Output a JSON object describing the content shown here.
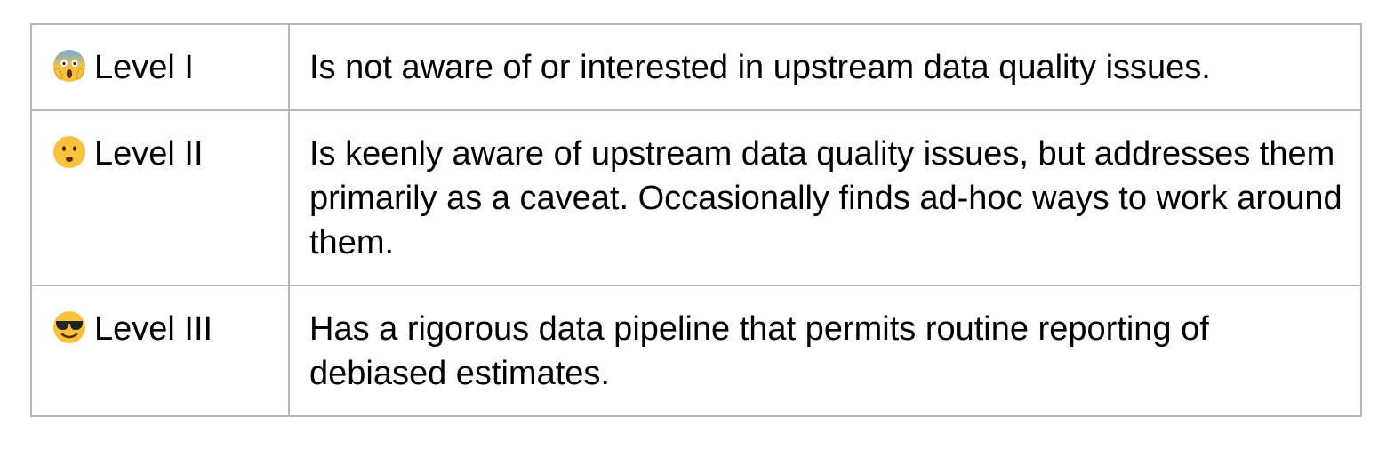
{
  "table": {
    "rows": [
      {
        "icon": "face-screaming-in-fear-icon",
        "level": "Level I",
        "description": "Is not aware of or interested in upstream data quality issues."
      },
      {
        "icon": "frowning-face-icon",
        "level": "Level II",
        "description": "Is keenly aware of upstream data quality issues, but addresses them primarily as a caveat. Occasionally finds ad-hoc ways to work around them."
      },
      {
        "icon": "smiling-face-with-sunglasses-icon",
        "level": "Level III",
        "description": "Has a rigorous data pipeline that permits routine reporting of debiased estimates."
      }
    ]
  },
  "colors": {
    "border": "#b7b7b7",
    "text": "#000000",
    "emoji_face": "#f9c23c",
    "emoji_screaming_top": "#6fa8dc"
  }
}
